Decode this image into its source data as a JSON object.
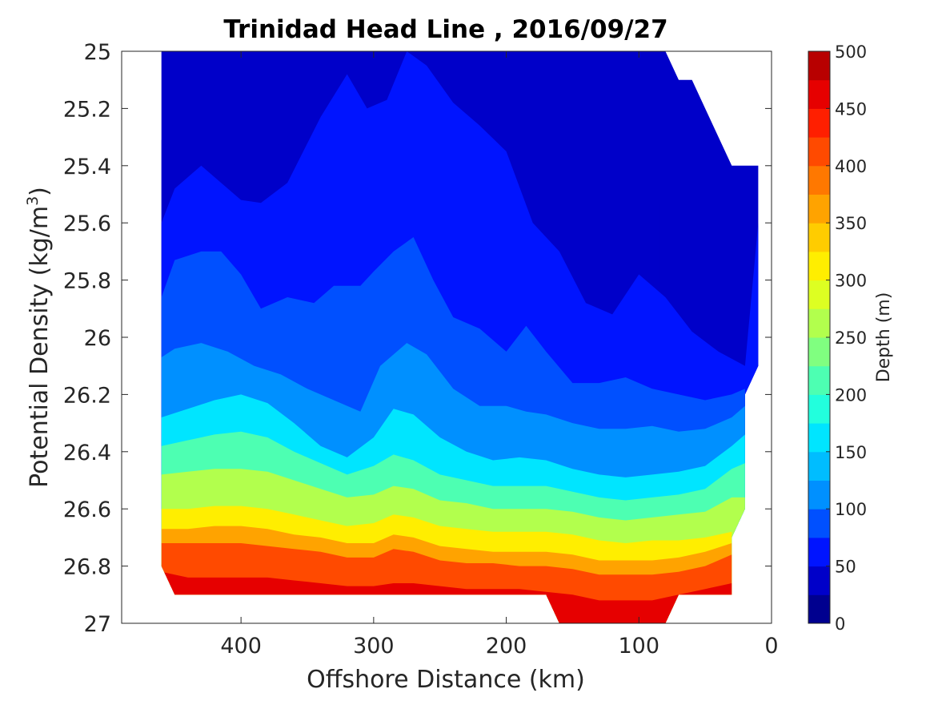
{
  "chart_data": {
    "type": "filled-contour",
    "title": "Trinidad Head Line , 2016/09/27",
    "xlabel": "Offshore Distance (km)",
    "ylabel_main": "Potential Density (kg/m",
    "ylabel_sup": "3",
    "ylabel_close": ")",
    "x_reversed": true,
    "xlim": [
      490,
      0
    ],
    "ylim": [
      25,
      27
    ],
    "y_reversed": true,
    "xticks": [
      400,
      300,
      200,
      100,
      0
    ],
    "xtick_labels": [
      "400",
      "300",
      "200",
      "100",
      "0"
    ],
    "yticks": [
      25,
      25.2,
      25.4,
      25.6,
      25.8,
      26,
      26.2,
      26.4,
      26.6,
      26.8,
      27
    ],
    "ytick_labels": [
      "25",
      "25.2",
      "25.4",
      "25.6",
      "25.8",
      "26",
      "26.2",
      "26.4",
      "26.6",
      "26.8",
      "27"
    ],
    "grid": false,
    "colorbar": {
      "label": "Depth (m)",
      "range": [
        0,
        500
      ],
      "levels": [
        0,
        25,
        50,
        75,
        100,
        125,
        150,
        175,
        200,
        225,
        250,
        275,
        300,
        325,
        350,
        375,
        400,
        425,
        450,
        475,
        500
      ],
      "tick_values": [
        0,
        50,
        100,
        150,
        200,
        250,
        300,
        350,
        400,
        450,
        500
      ],
      "tick_labels": [
        "0",
        "50",
        "100",
        "150",
        "200",
        "250",
        "300",
        "350",
        "400",
        "450",
        "500"
      ],
      "colormap": "jet",
      "colors": [
        "#00008f",
        "#0000c9",
        "#0014ff",
        "#0050ff",
        "#0090ff",
        "#00bdff",
        "#00e5ff",
        "#22ffdd",
        "#4dffb2",
        "#80ff80",
        "#b2ff4d",
        "#ddff22",
        "#ffee00",
        "#ffcc00",
        "#ffa300",
        "#ff7800",
        "#ff4a00",
        "#ff1f00",
        "#e60000",
        "#b80000"
      ]
    },
    "data_extent": {
      "left_edge": [
        {
          "x": 460,
          "y": 25
        },
        {
          "x": 460,
          "y": 26.8
        },
        {
          "x": 450,
          "y": 26.9
        }
      ],
      "bottom_edge": [
        {
          "x": 170,
          "y": 26.9
        },
        {
          "x": 160,
          "y": 27
        },
        {
          "x": 80,
          "y": 27
        },
        {
          "x": 70,
          "y": 26.9
        },
        {
          "x": 30,
          "y": 26.9
        }
      ],
      "right_edge": [
        {
          "x": 30,
          "y": 26.7
        },
        {
          "x": 20,
          "y": 26.6
        },
        {
          "x": 20,
          "y": 26.2
        },
        {
          "x": 10,
          "y": 26.1
        },
        {
          "x": 10,
          "y": 25.4
        },
        {
          "x": 30,
          "y": 25.4
        },
        {
          "x": 50,
          "y": 25.2
        },
        {
          "x": 60,
          "y": 25.1
        },
        {
          "x": 70,
          "y": 25.1
        },
        {
          "x": 80,
          "y": 25
        }
      ]
    },
    "series": [
      {
        "level": 25,
        "density": [
          [
            460,
            25.31
          ],
          [
            450,
            25.25
          ],
          [
            430,
            25.12
          ],
          [
            420,
            25.11
          ],
          [
            405,
            25.4
          ],
          [
            390,
            25.34
          ],
          [
            375,
            25.34
          ],
          [
            350,
            25.24
          ],
          [
            330,
            25.04
          ],
          [
            315,
            25.0
          ],
          [
            300,
            25.0
          ],
          [
            290,
            25.0
          ],
          [
            270,
            25.0
          ],
          [
            250,
            25.0
          ],
          [
            230,
            25.0
          ],
          [
            210,
            25.0
          ],
          [
            190,
            25.0
          ],
          [
            170,
            25.0
          ],
          [
            150,
            25.0
          ],
          [
            130,
            25.0
          ],
          [
            110,
            25.0
          ],
          [
            95,
            25.0
          ],
          [
            85,
            25.0
          ]
        ]
      },
      {
        "level": 50,
        "density": [
          [
            460,
            25.6
          ],
          [
            450,
            25.48
          ],
          [
            430,
            25.4
          ],
          [
            415,
            25.46
          ],
          [
            400,
            25.52
          ],
          [
            385,
            25.53
          ],
          [
            365,
            25.46
          ],
          [
            340,
            25.23
          ],
          [
            320,
            25.08
          ],
          [
            305,
            25.2
          ],
          [
            290,
            25.17
          ],
          [
            275,
            25.0
          ],
          [
            260,
            25.05
          ],
          [
            240,
            25.18
          ],
          [
            220,
            25.26
          ],
          [
            200,
            25.35
          ],
          [
            180,
            25.6
          ],
          [
            160,
            25.7
          ],
          [
            140,
            25.88
          ],
          [
            120,
            25.92
          ],
          [
            100,
            25.78
          ],
          [
            80,
            25.86
          ],
          [
            60,
            25.98
          ],
          [
            40,
            26.05
          ],
          [
            20,
            26.1
          ],
          [
            10,
            25.6
          ]
        ]
      },
      {
        "level": 75,
        "density": [
          [
            460,
            25.86
          ],
          [
            450,
            25.73
          ],
          [
            430,
            25.7
          ],
          [
            415,
            25.7
          ],
          [
            400,
            25.78
          ],
          [
            385,
            25.9
          ],
          [
            365,
            25.86
          ],
          [
            345,
            25.88
          ],
          [
            330,
            25.82
          ],
          [
            310,
            25.82
          ],
          [
            300,
            25.77
          ],
          [
            285,
            25.7
          ],
          [
            270,
            25.65
          ],
          [
            255,
            25.8
          ],
          [
            240,
            25.93
          ],
          [
            220,
            25.97
          ],
          [
            200,
            26.05
          ],
          [
            185,
            25.96
          ],
          [
            170,
            26.05
          ],
          [
            150,
            26.16
          ],
          [
            130,
            26.16
          ],
          [
            110,
            26.14
          ],
          [
            90,
            26.18
          ],
          [
            70,
            26.2
          ],
          [
            50,
            26.22
          ],
          [
            30,
            26.2
          ],
          [
            20,
            26.18
          ]
        ]
      },
      {
        "level": 100,
        "density": [
          [
            460,
            26.07
          ],
          [
            450,
            26.04
          ],
          [
            430,
            26.02
          ],
          [
            410,
            26.05
          ],
          [
            390,
            26.1
          ],
          [
            370,
            26.13
          ],
          [
            350,
            26.18
          ],
          [
            330,
            26.22
          ],
          [
            310,
            26.26
          ],
          [
            295,
            26.1
          ],
          [
            275,
            26.02
          ],
          [
            260,
            26.06
          ],
          [
            240,
            26.18
          ],
          [
            220,
            26.24
          ],
          [
            200,
            26.24
          ],
          [
            185,
            26.26
          ],
          [
            170,
            26.27
          ],
          [
            150,
            26.3
          ],
          [
            130,
            26.32
          ],
          [
            110,
            26.32
          ],
          [
            90,
            26.31
          ],
          [
            70,
            26.33
          ],
          [
            50,
            26.32
          ],
          [
            30,
            26.28
          ],
          [
            20,
            26.24
          ]
        ]
      },
      {
        "level": 150,
        "density": [
          [
            460,
            26.28
          ],
          [
            440,
            26.25
          ],
          [
            420,
            26.22
          ],
          [
            400,
            26.2
          ],
          [
            380,
            26.23
          ],
          [
            360,
            26.3
          ],
          [
            340,
            26.38
          ],
          [
            320,
            26.42
          ],
          [
            300,
            26.35
          ],
          [
            285,
            26.25
          ],
          [
            270,
            26.27
          ],
          [
            250,
            26.35
          ],
          [
            230,
            26.4
          ],
          [
            210,
            26.43
          ],
          [
            190,
            26.42
          ],
          [
            170,
            26.43
          ],
          [
            150,
            26.46
          ],
          [
            130,
            26.48
          ],
          [
            110,
            26.49
          ],
          [
            90,
            26.48
          ],
          [
            70,
            26.47
          ],
          [
            50,
            26.45
          ],
          [
            30,
            26.38
          ],
          [
            20,
            26.34
          ]
        ]
      },
      {
        "level": 200,
        "density": [
          [
            460,
            26.38
          ],
          [
            440,
            26.36
          ],
          [
            420,
            26.34
          ],
          [
            400,
            26.33
          ],
          [
            380,
            26.35
          ],
          [
            360,
            26.4
          ],
          [
            340,
            26.44
          ],
          [
            320,
            26.48
          ],
          [
            300,
            26.45
          ],
          [
            285,
            26.41
          ],
          [
            270,
            26.43
          ],
          [
            250,
            26.48
          ],
          [
            230,
            26.5
          ],
          [
            210,
            26.52
          ],
          [
            190,
            26.52
          ],
          [
            170,
            26.52
          ],
          [
            150,
            26.54
          ],
          [
            130,
            26.56
          ],
          [
            110,
            26.57
          ],
          [
            90,
            26.56
          ],
          [
            70,
            26.55
          ],
          [
            50,
            26.53
          ],
          [
            30,
            26.46
          ],
          [
            20,
            26.44
          ]
        ]
      },
      {
        "level": 250,
        "density": [
          [
            460,
            26.48
          ],
          [
            440,
            26.47
          ],
          [
            420,
            26.46
          ],
          [
            400,
            26.46
          ],
          [
            380,
            26.47
          ],
          [
            360,
            26.5
          ],
          [
            340,
            26.53
          ],
          [
            320,
            26.56
          ],
          [
            300,
            26.55
          ],
          [
            285,
            26.52
          ],
          [
            270,
            26.53
          ],
          [
            250,
            26.57
          ],
          [
            230,
            26.58
          ],
          [
            210,
            26.6
          ],
          [
            190,
            26.6
          ],
          [
            170,
            26.6
          ],
          [
            150,
            26.61
          ],
          [
            130,
            26.63
          ],
          [
            110,
            26.64
          ],
          [
            90,
            26.63
          ],
          [
            70,
            26.62
          ],
          [
            50,
            26.61
          ],
          [
            30,
            26.56
          ],
          [
            20,
            26.56
          ]
        ]
      },
      {
        "level": 300,
        "density": [
          [
            460,
            26.6
          ],
          [
            440,
            26.6
          ],
          [
            420,
            26.59
          ],
          [
            400,
            26.59
          ],
          [
            380,
            26.6
          ],
          [
            360,
            26.62
          ],
          [
            340,
            26.64
          ],
          [
            320,
            26.66
          ],
          [
            300,
            26.65
          ],
          [
            285,
            26.62
          ],
          [
            270,
            26.63
          ],
          [
            250,
            26.66
          ],
          [
            230,
            26.67
          ],
          [
            210,
            26.68
          ],
          [
            190,
            26.68
          ],
          [
            170,
            26.68
          ],
          [
            150,
            26.69
          ],
          [
            130,
            26.71
          ],
          [
            110,
            26.72
          ],
          [
            90,
            26.71
          ],
          [
            70,
            26.71
          ],
          [
            50,
            26.7
          ],
          [
            30,
            26.68
          ]
        ]
      },
      {
        "level": 350,
        "density": [
          [
            460,
            26.67
          ],
          [
            440,
            26.67
          ],
          [
            420,
            26.66
          ],
          [
            400,
            26.66
          ],
          [
            380,
            26.67
          ],
          [
            360,
            26.69
          ],
          [
            340,
            26.7
          ],
          [
            320,
            26.72
          ],
          [
            300,
            26.72
          ],
          [
            285,
            26.69
          ],
          [
            270,
            26.7
          ],
          [
            250,
            26.73
          ],
          [
            230,
            26.74
          ],
          [
            210,
            26.75
          ],
          [
            190,
            26.75
          ],
          [
            170,
            26.75
          ],
          [
            150,
            26.76
          ],
          [
            130,
            26.78
          ],
          [
            110,
            26.78
          ],
          [
            90,
            26.78
          ],
          [
            70,
            26.77
          ],
          [
            50,
            26.75
          ],
          [
            30,
            26.72
          ]
        ]
      },
      {
        "level": 400,
        "density": [
          [
            460,
            26.72
          ],
          [
            440,
            26.72
          ],
          [
            420,
            26.72
          ],
          [
            400,
            26.72
          ],
          [
            380,
            26.73
          ],
          [
            360,
            26.74
          ],
          [
            340,
            26.75
          ],
          [
            320,
            26.77
          ],
          [
            300,
            26.77
          ],
          [
            285,
            26.74
          ],
          [
            270,
            26.75
          ],
          [
            250,
            26.78
          ],
          [
            230,
            26.79
          ],
          [
            210,
            26.79
          ],
          [
            190,
            26.8
          ],
          [
            170,
            26.8
          ],
          [
            150,
            26.81
          ],
          [
            130,
            26.83
          ],
          [
            110,
            26.83
          ],
          [
            90,
            26.83
          ],
          [
            70,
            26.82
          ],
          [
            50,
            26.8
          ],
          [
            30,
            26.76
          ]
        ]
      },
      {
        "level": 450,
        "density": [
          [
            460,
            26.82
          ],
          [
            440,
            26.84
          ],
          [
            420,
            26.84
          ],
          [
            400,
            26.84
          ],
          [
            380,
            26.84
          ],
          [
            360,
            26.85
          ],
          [
            340,
            26.86
          ],
          [
            320,
            26.87
          ],
          [
            300,
            26.87
          ],
          [
            285,
            26.86
          ],
          [
            270,
            26.86
          ],
          [
            250,
            26.87
          ],
          [
            230,
            26.88
          ],
          [
            210,
            26.88
          ],
          [
            190,
            26.88
          ],
          [
            170,
            26.89
          ],
          [
            150,
            26.9
          ],
          [
            130,
            26.92
          ],
          [
            110,
            26.92
          ],
          [
            90,
            26.92
          ],
          [
            70,
            26.9
          ],
          [
            50,
            26.88
          ],
          [
            30,
            26.86
          ]
        ]
      }
    ]
  }
}
